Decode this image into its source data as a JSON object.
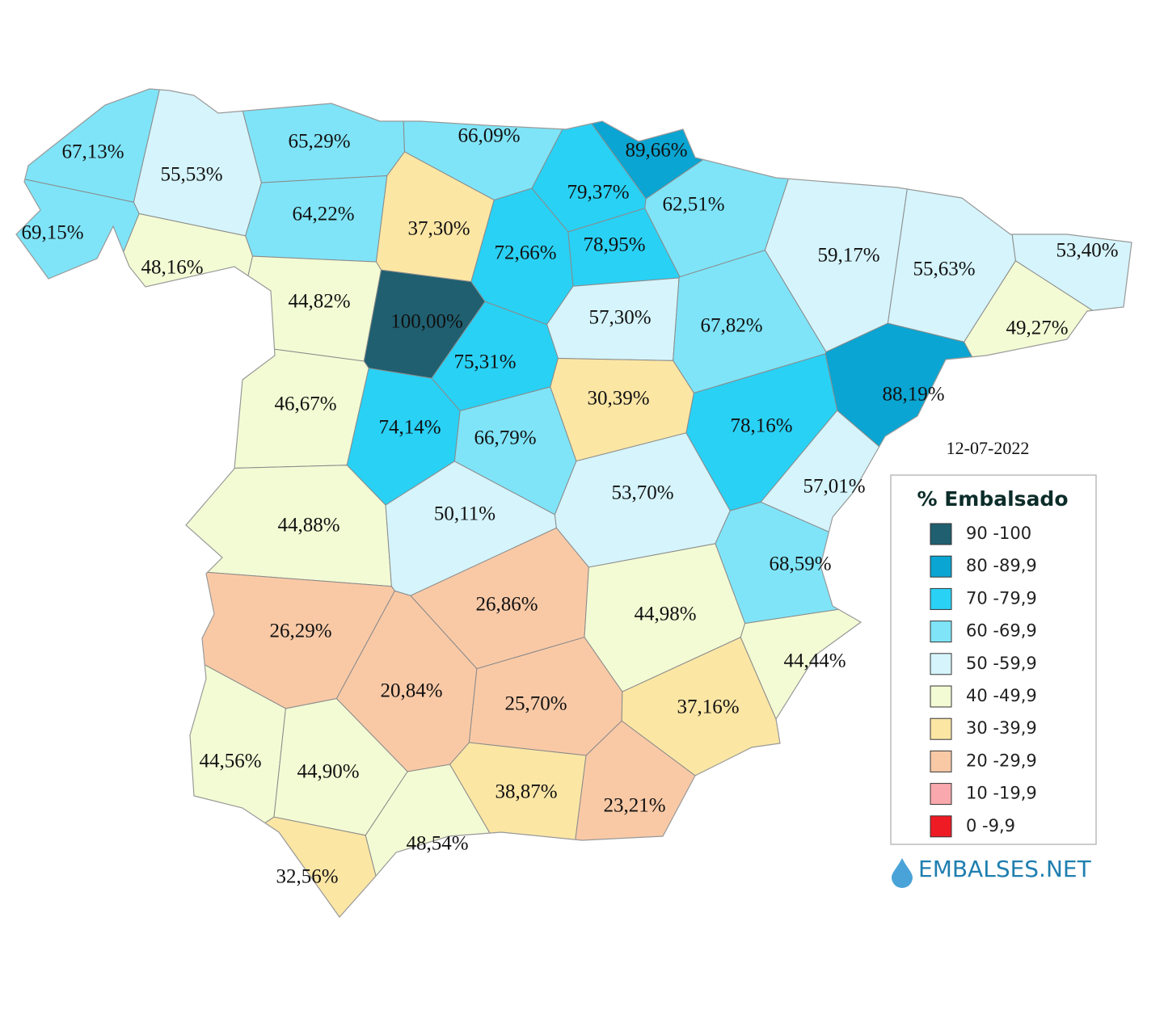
{
  "map": {
    "date": "12-07-2022",
    "regions": [
      {
        "label": "67,13%",
        "color": "#7fe4f8"
      },
      {
        "label": "69,15%",
        "color": "#7fe4f8"
      },
      {
        "label": "55,53%",
        "color": "#d5f4fb"
      },
      {
        "label": "65,29%",
        "color": "#7fe4f8"
      },
      {
        "label": "66,09%",
        "color": "#7fe4f8"
      },
      {
        "label": "89,66%",
        "color": "#0aa5d2"
      },
      {
        "label": "64,22%",
        "color": "#7fe4f8"
      },
      {
        "label": "37,30%",
        "color": "#fbe6a4"
      },
      {
        "label": "79,37%",
        "color": "#29d1f5"
      },
      {
        "label": "62,51%",
        "color": "#7fe4f8"
      },
      {
        "label": "48,16%",
        "color": "#f3fbd4"
      },
      {
        "label": "72,66%",
        "color": "#29d1f5"
      },
      {
        "label": "78,95%",
        "color": "#29d1f5"
      },
      {
        "label": "59,17%",
        "color": "#d5f4fb"
      },
      {
        "label": "55,63%",
        "color": "#d5f4fb"
      },
      {
        "label": "53,40%",
        "color": "#d5f4fb"
      },
      {
        "label": "44,82%",
        "color": "#f3fbd4"
      },
      {
        "label": "100,00%",
        "color": "#1f5f70"
      },
      {
        "label": "57,30%",
        "color": "#d5f4fb"
      },
      {
        "label": "67,82%",
        "color": "#7fe4f8"
      },
      {
        "label": "49,27%",
        "color": "#f3fbd4"
      },
      {
        "label": "75,31%",
        "color": "#29d1f5"
      },
      {
        "label": "88,19%",
        "color": "#0aa5d2"
      },
      {
        "label": "46,67%",
        "color": "#f3fbd4"
      },
      {
        "label": "30,39%",
        "color": "#fbe6a4"
      },
      {
        "label": "74,14%",
        "color": "#29d1f5"
      },
      {
        "label": "66,79%",
        "color": "#7fe4f8"
      },
      {
        "label": "78,16%",
        "color": "#29d1f5"
      },
      {
        "label": "57,01%",
        "color": "#d5f4fb"
      },
      {
        "label": "44,88%",
        "color": "#f3fbd4"
      },
      {
        "label": "50,11%",
        "color": "#d5f4fb"
      },
      {
        "label": "53,70%",
        "color": "#d5f4fb"
      },
      {
        "label": "68,59%",
        "color": "#7fe4f8"
      },
      {
        "label": "26,29%",
        "color": "#f9c9a6"
      },
      {
        "label": "26,86%",
        "color": "#f9c9a6"
      },
      {
        "label": "44,98%",
        "color": "#f3fbd4"
      },
      {
        "label": "44,44%",
        "color": "#f3fbd4"
      },
      {
        "label": "20,84%",
        "color": "#f9c9a6"
      },
      {
        "label": "25,70%",
        "color": "#f9c9a6"
      },
      {
        "label": "37,16%",
        "color": "#fbe6a4"
      },
      {
        "label": "44,56%",
        "color": "#f3fbd4"
      },
      {
        "label": "44,90%",
        "color": "#f3fbd4"
      },
      {
        "label": "38,87%",
        "color": "#fbe6a4"
      },
      {
        "label": "23,21%",
        "color": "#f9c9a6"
      },
      {
        "label": "48,54%",
        "color": "#f3fbd4"
      },
      {
        "label": "32,56%",
        "color": "#fbe6a4"
      }
    ],
    "legend": {
      "title": "% Embalsado",
      "items": [
        {
          "label": "90 -100",
          "color": "#1f5f70"
        },
        {
          "label": "80 -89,9",
          "color": "#0aa5d2"
        },
        {
          "label": "70 -79,9",
          "color": "#29d1f5"
        },
        {
          "label": "60 -69,9",
          "color": "#7fe4f8"
        },
        {
          "label": "50 -59,9",
          "color": "#d5f4fb"
        },
        {
          "label": "40 -49,9",
          "color": "#f3fbd4"
        },
        {
          "label": "30 -39,9",
          "color": "#fbe6a4"
        },
        {
          "label": "20 -29,9",
          "color": "#f9c9a6"
        },
        {
          "label": "10 -19,9",
          "color": "#f9a9ad"
        },
        {
          "label": "0 -9,9",
          "color": "#ee1b24"
        }
      ]
    },
    "brand": "EMBALSES.NET"
  }
}
